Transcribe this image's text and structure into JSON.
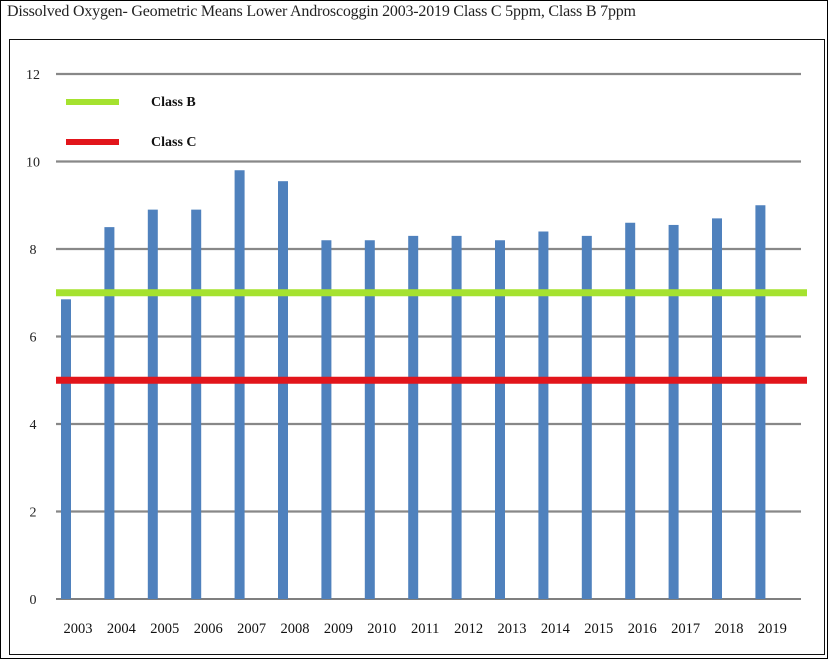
{
  "chart_data": {
    "type": "bar",
    "title": "Dissolved Oxygen- Geometric Means Lower Androscoggin 2003-2019 Class C 5ppm, Class B 7ppm",
    "xlabel": "",
    "ylabel": "",
    "ylim": [
      0,
      12
    ],
    "yticks": [
      "0",
      "2",
      "4",
      "6",
      "8",
      "10",
      "12"
    ],
    "categories": [
      "2003",
      "2004",
      "2005",
      "2006",
      "2007",
      "2008",
      "2009",
      "2010",
      "2011",
      "2012",
      "2013",
      "2014",
      "2015",
      "2016",
      "2017",
      "2018",
      "2019"
    ],
    "values": [
      6.85,
      8.5,
      8.9,
      8.9,
      9.8,
      9.55,
      8.2,
      8.2,
      8.3,
      8.3,
      8.2,
      8.4,
      8.3,
      8.6,
      8.55,
      8.7,
      9.0
    ],
    "bar_color": "#4f81bd",
    "grid": true,
    "legend_position": "top-left",
    "reference_lines": [
      {
        "name": "Class B",
        "value": 7,
        "color": "#a5e22f"
      },
      {
        "name": "Class C",
        "value": 5,
        "color": "#e2151b"
      }
    ]
  }
}
